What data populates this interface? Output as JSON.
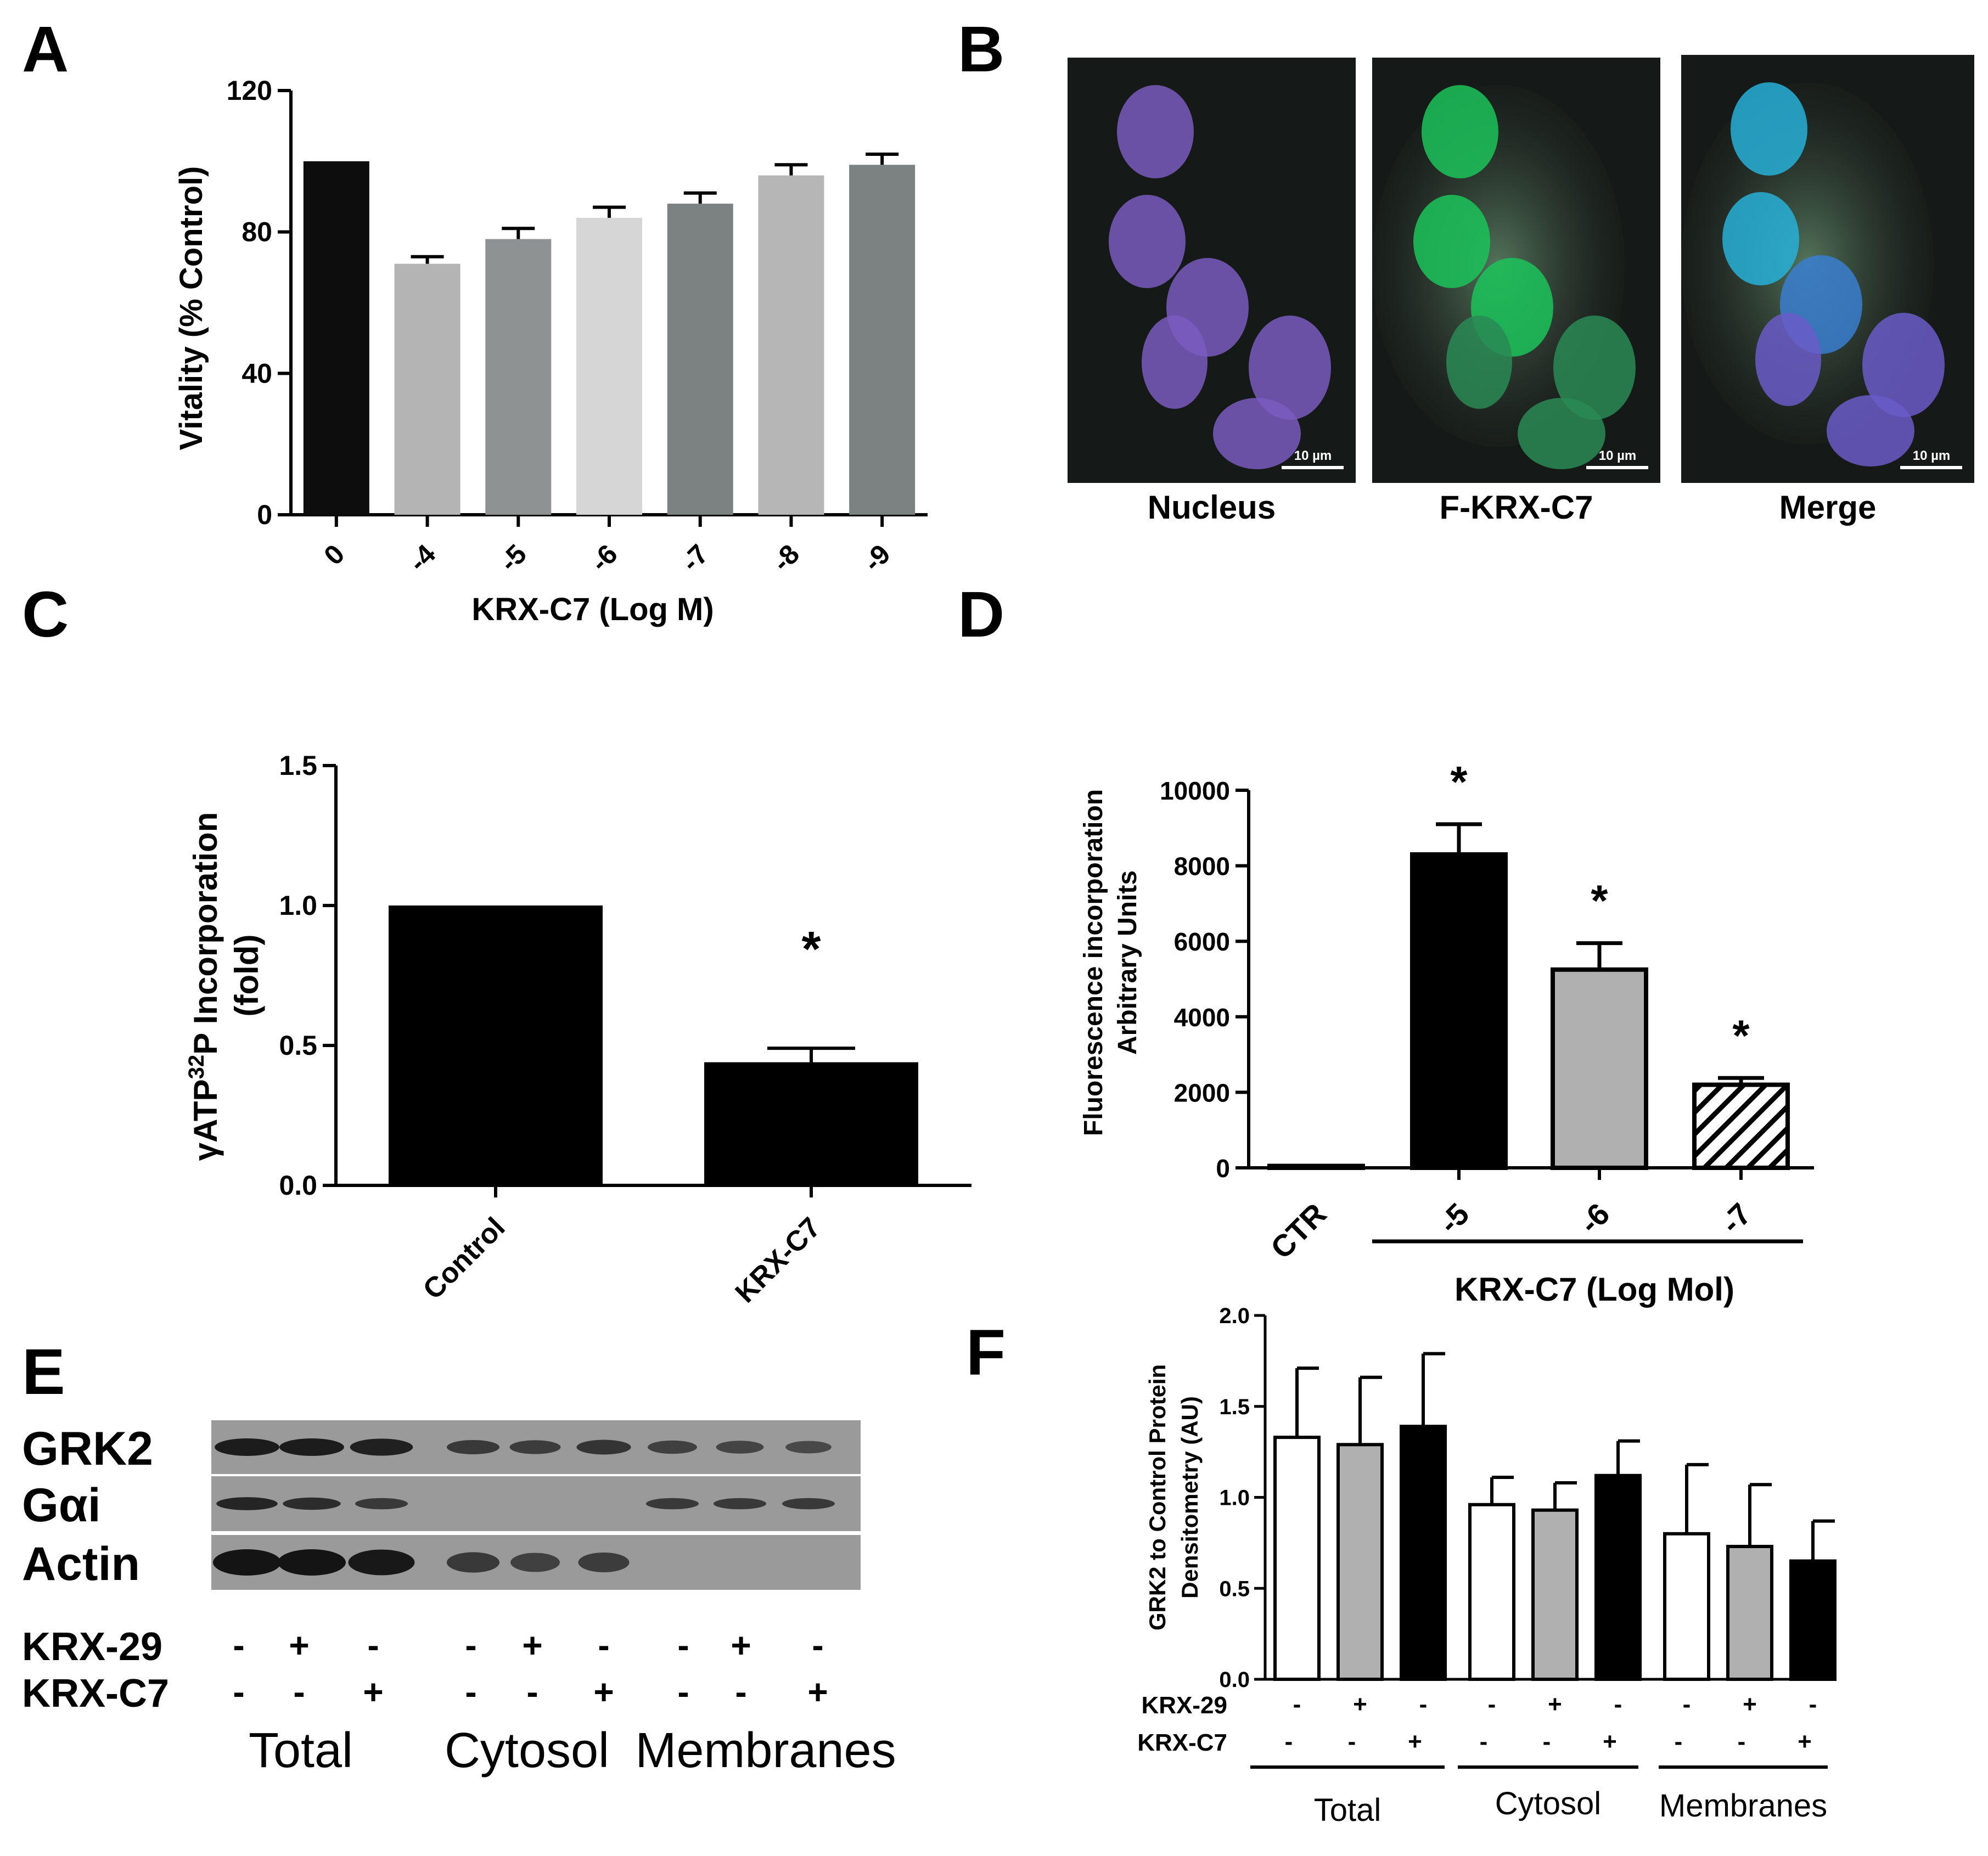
{
  "panel_letters": {
    "a": "A",
    "b": "B",
    "c": "C",
    "d": "D",
    "e": "E",
    "f": "F"
  },
  "chart_data": [
    {
      "panel": "A",
      "type": "bar",
      "categories": [
        "0",
        "-4",
        "-5",
        "-6",
        "-7",
        "-8",
        "-9"
      ],
      "values": [
        100,
        71,
        78,
        84,
        88,
        96,
        99
      ],
      "errors": [
        0,
        2,
        3,
        3,
        3,
        3,
        3
      ],
      "colors": [
        "#0d0d0d",
        "#b4b4b4",
        "#8e9293",
        "#d6d6d6",
        "#7c8182",
        "#b6b6b6",
        "#7c8182"
      ],
      "ylim": [
        0,
        120
      ],
      "yticks": [
        "0",
        "40",
        "80",
        "120"
      ],
      "xlabel": "KRX-C7 (Log M)",
      "ylabel": "Vitality (% Control)",
      "grid": false
    },
    {
      "panel": "C",
      "type": "bar",
      "categories": [
        "Control",
        "KRX-C7"
      ],
      "values": [
        1.0,
        0.44
      ],
      "errors": [
        0,
        0.05
      ],
      "colors": [
        "#000000",
        "#000000"
      ],
      "ylim": [
        0,
        1.5
      ],
      "yticks": [
        "0.0",
        "0.5",
        "1.0",
        "1.5"
      ],
      "ylabel_parts": [
        "γATP",
        "32",
        "P Incorporation",
        "(fold)"
      ],
      "annotations": [
        "",
        "*"
      ],
      "grid": false
    },
    {
      "panel": "D",
      "type": "bar",
      "categories": [
        "CTR",
        "-5",
        "-6",
        "-7"
      ],
      "values": [
        50,
        8300,
        5250,
        2200
      ],
      "errors": [
        0,
        800,
        700,
        180
      ],
      "fills": [
        "black",
        "black",
        "#b0b0b0",
        "hatch"
      ],
      "ylim": [
        0,
        10000
      ],
      "yticks": [
        "0",
        "2000",
        "4000",
        "6000",
        "8000",
        "10000"
      ],
      "ylabel": [
        "Fluorescence incorporation",
        "Arbitrary Units"
      ],
      "xlabel": "KRX-C7 (Log Mol)",
      "annotations": [
        "",
        "*",
        "*",
        "*"
      ],
      "grid": false
    },
    {
      "panel": "F",
      "type": "bar",
      "categories": [
        "Total KRX-29 -/KRX-C7 -",
        "Total KRX-29 +/KRX-C7 -",
        "Total KRX-29 -/KRX-C7 +",
        "Cytosol KRX-29 -/KRX-C7 -",
        "Cytosol KRX-29 +/KRX-C7 -",
        "Cytosol KRX-29 -/KRX-C7 +",
        "Membranes KRX-29 -/KRX-C7 -",
        "Membranes KRX-29 +/KRX-C7 -",
        "Membranes KRX-29 -/KRX-C7 +"
      ],
      "values": [
        1.33,
        1.29,
        1.39,
        0.96,
        0.93,
        1.12,
        0.8,
        0.73,
        0.65
      ],
      "errors": [
        0.38,
        0.37,
        0.4,
        0.15,
        0.15,
        0.19,
        0.38,
        0.34,
        0.22
      ],
      "fills": [
        "white",
        "#b0b0b0",
        "black",
        "white",
        "#b0b0b0",
        "black",
        "white",
        "#b0b0b0",
        "black"
      ],
      "ylim": [
        0,
        2.0
      ],
      "yticks": [
        "0.0",
        "0.5",
        "1.0",
        "1.5",
        "2.0"
      ],
      "ylabel": [
        "GRK2 to Control Protein",
        "Densitometry (AU)"
      ],
      "row_labels": [
        "KRX-29",
        "KRX-C7"
      ],
      "krx29_signs": [
        "-",
        "+",
        "-",
        "-",
        "+",
        "-",
        "-",
        "+",
        "-"
      ],
      "krxc7_signs": [
        "-",
        "-",
        "+",
        "-",
        "-",
        "+",
        "-",
        "-",
        "+"
      ],
      "groups": [
        "Total",
        "Cytosol",
        "Membranes"
      ],
      "grid": false
    }
  ],
  "panel_b": {
    "captions": [
      "Nucleus",
      "F-KRX-C7",
      "Merge"
    ],
    "scale_label": "10 µm",
    "nucleus_color": "#7a5cc0",
    "fkrx_color": "#1fc860",
    "merge_color": "#3aa0d8"
  },
  "panel_e": {
    "blot_labels": [
      "GRK2",
      "Gαi",
      "Actin"
    ],
    "row_labels": [
      "KRX-29",
      "KRX-C7"
    ],
    "krx29_signs": [
      "-",
      "+",
      "-",
      "-",
      "+",
      "-",
      "-",
      "+",
      "-"
    ],
    "krxc7_signs": [
      "-",
      "-",
      "+",
      "-",
      "-",
      "+",
      "-",
      "-",
      "+"
    ],
    "groups": [
      "Total",
      "Cytosol",
      "Membranes"
    ],
    "grk2_band": [
      0.9,
      0.9,
      0.85,
      0.55,
      0.5,
      0.6,
      0.45,
      0.4,
      0.35
    ],
    "gai_band": [
      0.8,
      0.7,
      0.55,
      0,
      0,
      0,
      0.55,
      0.55,
      0.55
    ],
    "actin_band": [
      1.0,
      1.0,
      0.95,
      0.55,
      0.45,
      0.5,
      0,
      0,
      0
    ]
  }
}
